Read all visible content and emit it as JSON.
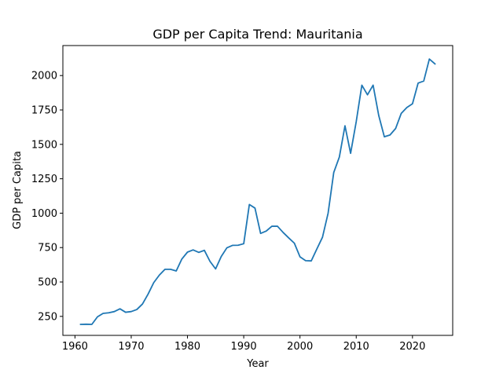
{
  "chart_data": {
    "type": "line",
    "title": "GDP per Capita Trend: Mauritania",
    "xlabel": "Year",
    "ylabel": "GDP per Capita",
    "xlim": [
      1957.85,
      2027.15
    ],
    "ylim": [
      112,
      2218
    ],
    "xticks": [
      1960,
      1970,
      1980,
      1990,
      2000,
      2010,
      2020
    ],
    "yticks": [
      250,
      500,
      750,
      1000,
      1250,
      1500,
      1750,
      2000
    ],
    "grid": false,
    "legend": "none",
    "colors": {
      "line": "#1f77b4"
    },
    "series": [
      {
        "x": [
          1961,
          1962,
          1963,
          1964,
          1965,
          1966,
          1967,
          1968,
          1969,
          1970,
          1971,
          1972,
          1973,
          1974,
          1975,
          1976,
          1977,
          1978,
          1979,
          1980,
          1981,
          1982,
          1983,
          1984,
          1985,
          1986,
          1987,
          1988,
          1989,
          1990,
          1991,
          1992,
          1993,
          1994,
          1995,
          1996,
          1997,
          1998,
          1999,
          2000,
          2001,
          2002,
          2003,
          2004,
          2005,
          2006,
          2007,
          2008,
          2009,
          2010,
          2011,
          2012,
          2013,
          2014,
          2015,
          2016,
          2017,
          2018,
          2019,
          2020,
          2021,
          2022,
          2023,
          2024
        ],
        "values": [
          192,
          193,
          192,
          247,
          272,
          276,
          285,
          305,
          280,
          285,
          300,
          340,
          412,
          495,
          550,
          592,
          592,
          580,
          667,
          717,
          733,
          715,
          730,
          650,
          595,
          685,
          748,
          766,
          767,
          778,
          1063,
          1037,
          853,
          870,
          905,
          905,
          860,
          820,
          782,
          683,
          655,
          653,
          740,
          825,
          1000,
          1295,
          1408,
          1635,
          1435,
          1665,
          1930,
          1860,
          1930,
          1710,
          1555,
          1568,
          1615,
          1725,
          1768,
          1795,
          1945,
          1960,
          2120,
          2085
        ]
      }
    ]
  }
}
